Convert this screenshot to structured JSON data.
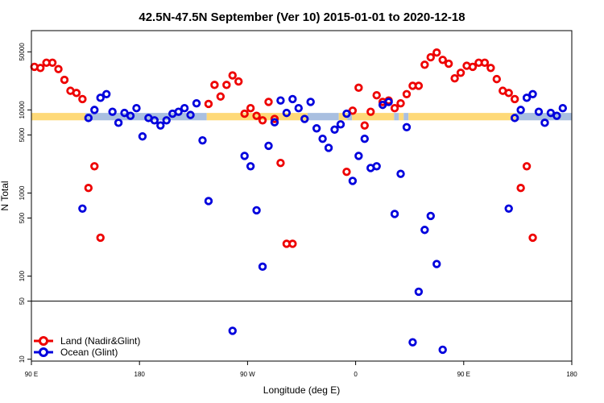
{
  "chart_data": {
    "type": "scatter",
    "title": "42.5N-47.5N September (Ver 10)   2015-01-01 to 2020-12-18",
    "xlabel": "Longitude (deg E)",
    "ylabel": "N Total",
    "x_unit": "longitude in degrees east, wrapping from 90 E across 180 to 180",
    "xlim": [
      90,
      540
    ],
    "x_ticks": [
      {
        "value": 90,
        "label": "90 E"
      },
      {
        "value": 180,
        "label": "180"
      },
      {
        "value": 270,
        "label": "90 W"
      },
      {
        "value": 360,
        "label": "0"
      },
      {
        "value": 450,
        "label": "90 E"
      },
      {
        "value": 540,
        "label": "180"
      }
    ],
    "y_scale": "log",
    "y_ticks": [
      {
        "value": 10,
        "label": "10"
      },
      {
        "value": 50,
        "label": "50"
      },
      {
        "value": 100,
        "label": "100"
      },
      {
        "value": 500,
        "label": "500"
      },
      {
        "value": 1000,
        "label": "1000"
      },
      {
        "value": 5000,
        "label": "5000"
      },
      {
        "value": 10000,
        "label": "10000"
      },
      {
        "value": 50000,
        "label": "50000"
      }
    ],
    "ylim": [
      9.5,
      90000
    ],
    "horizontal_line_at": 50,
    "grid": false,
    "legend_position": "bottom-left",
    "colors": {
      "land": "#ee0000",
      "ocean": "#0000dd",
      "band_land": "#fed978",
      "band_ocean": "#a9bfe0"
    },
    "land_ocean_band": {
      "y_range": [
        7500,
        9200
      ],
      "segments": [
        {
          "type": "land",
          "x_start": 90,
          "x_end": 135
        },
        {
          "type": "ocean",
          "x_start": 135,
          "x_end": 236
        },
        {
          "type": "land",
          "x_start": 236,
          "x_end": 320
        },
        {
          "type": "ocean",
          "x_start": 320,
          "x_end": 346
        },
        {
          "type": "land",
          "x_start": 346,
          "x_end": 353
        },
        {
          "type": "ocean",
          "x_start": 353,
          "x_end": 357
        },
        {
          "type": "land",
          "x_start": 357,
          "x_end": 392
        },
        {
          "type": "ocean",
          "x_start": 392,
          "x_end": 396
        },
        {
          "type": "land",
          "x_start": 396,
          "x_end": 400
        },
        {
          "type": "ocean",
          "x_start": 400,
          "x_end": 404
        },
        {
          "type": "land",
          "x_start": 404,
          "x_end": 493
        },
        {
          "type": "ocean",
          "x_start": 493,
          "x_end": 540
        }
      ]
    },
    "series": [
      {
        "name": "Land (Nadir&Glint)",
        "color": "#ee0000",
        "points": [
          [
            92.5,
            33000
          ],
          [
            97.5,
            32000
          ],
          [
            102.5,
            37000
          ],
          [
            107.5,
            37000
          ],
          [
            112.5,
            31000
          ],
          [
            117.5,
            23000
          ],
          [
            122.5,
            17000
          ],
          [
            127.5,
            16000
          ],
          [
            132.5,
            13500
          ],
          [
            137.5,
            1150
          ],
          [
            142.5,
            2100
          ],
          [
            147.5,
            290
          ],
          [
            237.5,
            11800
          ],
          [
            242.5,
            20000
          ],
          [
            247.5,
            14500
          ],
          [
            252.5,
            20000
          ],
          [
            257.5,
            26000
          ],
          [
            262.5,
            22000
          ],
          [
            267.5,
            9000
          ],
          [
            272.5,
            10500
          ],
          [
            277.5,
            8500
          ],
          [
            282.5,
            7500
          ],
          [
            287.5,
            12500
          ],
          [
            292.5,
            7800
          ],
          [
            297.5,
            2300
          ],
          [
            302.5,
            245
          ],
          [
            307.5,
            245
          ],
          [
            352.5,
            1800
          ],
          [
            357.5,
            9800
          ],
          [
            362.5,
            18500
          ],
          [
            367.5,
            6500
          ],
          [
            372.5,
            9500
          ],
          [
            377.5,
            15000
          ],
          [
            382.5,
            12500
          ],
          [
            387.5,
            13000
          ],
          [
            392.5,
            10500
          ],
          [
            397.5,
            12000
          ],
          [
            402.5,
            15500
          ],
          [
            407.5,
            19500
          ],
          [
            412.5,
            19500
          ],
          [
            417.5,
            35000
          ],
          [
            422.5,
            43000
          ],
          [
            427.5,
            49000
          ],
          [
            432.5,
            40000
          ],
          [
            437.5,
            36000
          ],
          [
            442.5,
            24000
          ],
          [
            447.5,
            28000
          ],
          [
            452.5,
            34000
          ],
          [
            457.5,
            33000
          ],
          [
            462.5,
            37000
          ],
          [
            467.5,
            37000
          ],
          [
            472.5,
            32000
          ],
          [
            477.5,
            23500
          ],
          [
            482.5,
            17000
          ],
          [
            487.5,
            16000
          ],
          [
            492.5,
            13500
          ],
          [
            497.5,
            1150
          ],
          [
            502.5,
            2100
          ],
          [
            507.5,
            290
          ]
        ]
      },
      {
        "name": "Ocean (Glint)",
        "color": "#0000dd",
        "points": [
          [
            132.5,
            650
          ],
          [
            137.5,
            8000
          ],
          [
            142.5,
            10000
          ],
          [
            147.5,
            14000
          ],
          [
            152.5,
            15500
          ],
          [
            157.5,
            9500
          ],
          [
            162.5,
            7000
          ],
          [
            167.5,
            9200
          ],
          [
            172.5,
            8500
          ],
          [
            177.5,
            10500
          ],
          [
            182.5,
            4800
          ],
          [
            187.5,
            8000
          ],
          [
            192.5,
            7500
          ],
          [
            197.5,
            6500
          ],
          [
            202.5,
            7500
          ],
          [
            207.5,
            9000
          ],
          [
            212.5,
            9500
          ],
          [
            217.5,
            10500
          ],
          [
            222.5,
            8700
          ],
          [
            227.5,
            12000
          ],
          [
            232.5,
            4300
          ],
          [
            237.5,
            800
          ],
          [
            257.5,
            22
          ],
          [
            267.5,
            2800
          ],
          [
            272.5,
            2100
          ],
          [
            277.5,
            620
          ],
          [
            282.5,
            130
          ],
          [
            287.5,
            3700
          ],
          [
            292.5,
            7100
          ],
          [
            297.5,
            13000
          ],
          [
            302.5,
            9200
          ],
          [
            307.5,
            13500
          ],
          [
            312.5,
            10500
          ],
          [
            317.5,
            7800
          ],
          [
            322.5,
            12500
          ],
          [
            327.5,
            6000
          ],
          [
            332.5,
            4500
          ],
          [
            337.5,
            3500
          ],
          [
            342.5,
            5800
          ],
          [
            347.5,
            6700
          ],
          [
            352.5,
            9000
          ],
          [
            357.5,
            1400
          ],
          [
            362.5,
            2800
          ],
          [
            367.5,
            4500
          ],
          [
            372.5,
            2000
          ],
          [
            377.5,
            2100
          ],
          [
            382.5,
            11500
          ],
          [
            387.5,
            12500
          ],
          [
            392.5,
            560
          ],
          [
            397.5,
            1700
          ],
          [
            402.5,
            6200
          ],
          [
            407.5,
            16
          ],
          [
            412.5,
            65
          ],
          [
            417.5,
            360
          ],
          [
            422.5,
            530
          ],
          [
            427.5,
            140
          ],
          [
            432.5,
            13
          ],
          [
            487.5,
            650
          ],
          [
            492.5,
            8000
          ],
          [
            497.5,
            10000
          ],
          [
            502.5,
            14000
          ],
          [
            507.5,
            15500
          ],
          [
            512.5,
            9500
          ],
          [
            517.5,
            7000
          ],
          [
            522.5,
            9200
          ],
          [
            527.5,
            8500
          ],
          [
            532.5,
            10500
          ]
        ]
      }
    ]
  }
}
